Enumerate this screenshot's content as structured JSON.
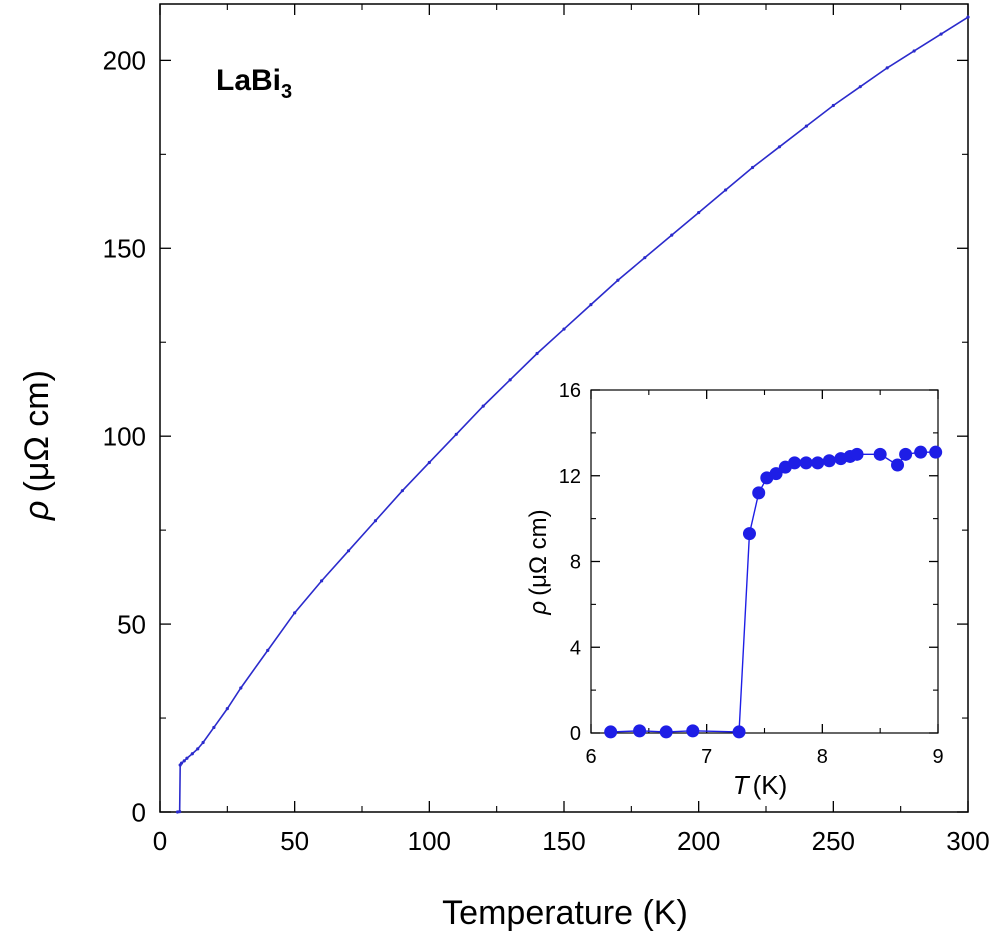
{
  "chart_data": [
    {
      "type": "line",
      "annotation": {
        "main": "LaBi",
        "sub": "3"
      },
      "xlabel": "Temperature (K)",
      "ylabel": {
        "symbol": "ρ",
        "unit": "(μΩ cm)"
      },
      "xlim": [
        0,
        300
      ],
      "ylim": [
        0,
        215
      ],
      "xticks": [
        0,
        50,
        100,
        150,
        200,
        250,
        300
      ],
      "yticks": [
        0,
        50,
        100,
        150,
        200
      ],
      "color": "#2b2bcc",
      "series": [
        {
          "x": [
            6.5,
            7.3,
            7.5,
            8,
            9,
            10,
            12,
            14,
            16,
            20,
            25,
            30,
            40,
            50,
            60,
            70,
            80,
            90,
            100,
            110,
            120,
            130,
            140,
            150,
            160,
            170,
            180,
            190,
            200,
            210,
            220,
            230,
            240,
            250,
            260,
            270,
            280,
            290,
            300
          ],
          "y": [
            0,
            0.1,
            12.5,
            13,
            13.6,
            14.3,
            15.5,
            16.8,
            18.5,
            22.5,
            27.5,
            33,
            43,
            53,
            61.5,
            69.5,
            77.5,
            85.5,
            93,
            100.5,
            108,
            115,
            122,
            128.5,
            135,
            141.5,
            147.5,
            153.5,
            159.5,
            165.5,
            171.5,
            177,
            182.5,
            188,
            193,
            198,
            202.5,
            207,
            211.5
          ]
        }
      ]
    },
    {
      "type": "scatter",
      "xlabel": {
        "symbol": "T",
        "unit": "(K)"
      },
      "ylabel": {
        "symbol": "ρ",
        "unit": "(μΩ cm)"
      },
      "xlim": [
        6,
        9
      ],
      "ylim": [
        0,
        16
      ],
      "xticks": [
        6,
        7,
        8,
        9
      ],
      "yticks": [
        0,
        4,
        8,
        12,
        16
      ],
      "color": "#1e1ee6",
      "series": [
        {
          "x": [
            6.17,
            6.42,
            6.65,
            6.88,
            7.28,
            7.37,
            7.45,
            7.52,
            7.6,
            7.68,
            7.76,
            7.86,
            7.96,
            8.06,
            8.16,
            8.24,
            8.3,
            8.5,
            8.65,
            8.72,
            8.85,
            8.98
          ],
          "y": [
            0.05,
            0.1,
            0.05,
            0.1,
            0.05,
            9.3,
            11.2,
            11.9,
            12.1,
            12.4,
            12.6,
            12.6,
            12.6,
            12.7,
            12.8,
            12.9,
            13.0,
            13.0,
            12.5,
            13.0,
            13.1,
            13.1
          ]
        }
      ]
    }
  ]
}
